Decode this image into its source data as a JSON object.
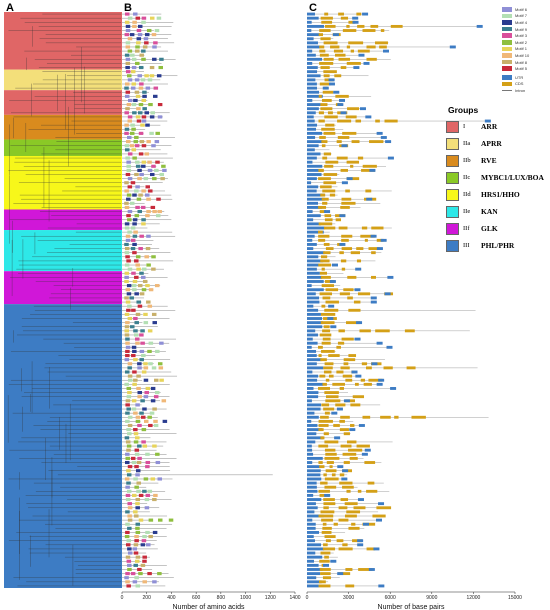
{
  "panels": [
    "A",
    "B",
    "C"
  ],
  "groups_title": "Groups",
  "groups": [
    {
      "id": "I",
      "name": "ARR",
      "color": "#e06666"
    },
    {
      "id": "IIa",
      "name": "APRR",
      "color": "#f3df7a"
    },
    {
      "id": "IIb",
      "name": "RVE",
      "color": "#d98b1e"
    },
    {
      "id": "IIc",
      "name": "MYBC1/LUX/BOA",
      "color": "#8ac926"
    },
    {
      "id": "IId",
      "name": "HRS1/HHO",
      "color": "#f7f71a"
    },
    {
      "id": "IIe",
      "name": "KAN",
      "color": "#2ee8e8"
    },
    {
      "id": "IIf",
      "name": "GLK",
      "color": "#d017d8"
    },
    {
      "id": "III",
      "name": "PHL/PHR",
      "color": "#3d7cc4"
    }
  ],
  "motif_legend": [
    {
      "label": "Motif 6",
      "color": "#8f8fd6"
    },
    {
      "label": "Motif 7",
      "color": "#b3dfb3"
    },
    {
      "label": "Motif 4",
      "color": "#2a3c8f"
    },
    {
      "label": "Motif 9",
      "color": "#3b7f8f"
    },
    {
      "label": "Motif 3",
      "color": "#d94f9b"
    },
    {
      "label": "Motif 2",
      "color": "#8fbf3f"
    },
    {
      "label": "Motif 1",
      "color": "#e8d45a"
    },
    {
      "label": "Motif 10",
      "color": "#f0b878"
    },
    {
      "label": "Motif 8",
      "color": "#c8b06a"
    },
    {
      "label": "Motif 5",
      "color": "#c82a3a"
    }
  ],
  "structure_legend": [
    {
      "label": "UTR",
      "color": "#3d7cc4"
    },
    {
      "label": "CDS",
      "color": "#d4a017"
    },
    {
      "label": "Intron",
      "color": "#777777"
    }
  ],
  "panel_b_axis": {
    "title": "Number of amino acids",
    "ticks": [
      "0",
      "200",
      "400",
      "600",
      "800",
      "1000",
      "1200",
      "1400"
    ],
    "max": 1400
  },
  "panel_c_axis": {
    "title": "Number of base pairs",
    "ticks": [
      "0",
      "3000",
      "6000",
      "9000",
      "12000",
      "15000"
    ],
    "max": 15000
  },
  "band_groups": [
    {
      "group": "I",
      "rows": 14
    },
    {
      "group": "IIa",
      "rows": 5
    },
    {
      "group": "I",
      "rows": 6
    },
    {
      "group": "IIb",
      "rows": 6
    },
    {
      "group": "IIc",
      "rows": 4
    },
    {
      "group": "IId",
      "rows": 13
    },
    {
      "group": "IIf",
      "rows": 5
    },
    {
      "group": "IIe",
      "rows": 10
    },
    {
      "group": "IIf",
      "rows": 8
    },
    {
      "group": "III",
      "rows": 69
    }
  ]
}
